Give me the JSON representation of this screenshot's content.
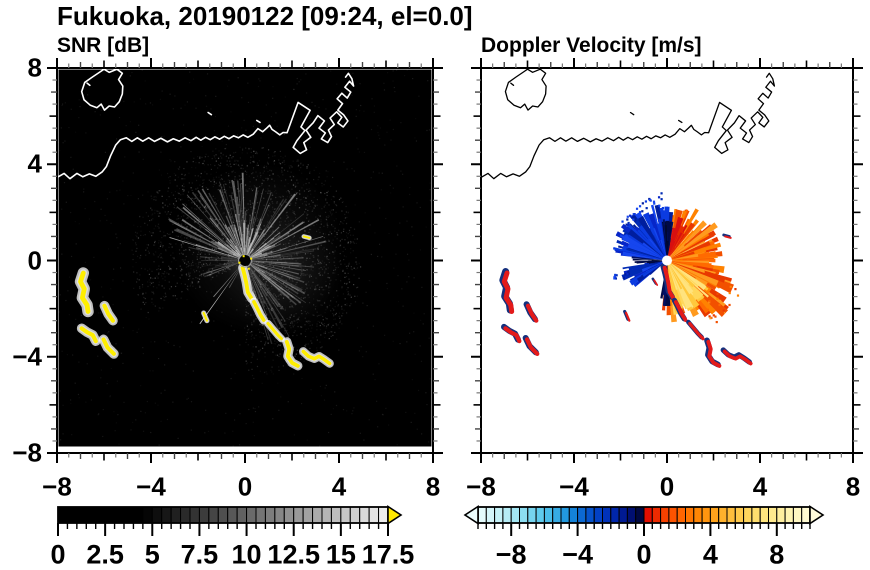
{
  "header": {
    "title": "Fukuoka, 20190122 [09:24, el=0.0]"
  },
  "chart_data": [
    {
      "id": "snr",
      "type": "heatmap",
      "title": "SNR [dB]",
      "xlim": [
        -8,
        8
      ],
      "ylim": [
        -8,
        8
      ],
      "xtick_values": [
        -8,
        -4,
        0,
        4,
        8
      ],
      "xtick_labels": [
        "−8",
        "−4",
        "0",
        "4",
        "8"
      ],
      "ytick_values": [
        8,
        4,
        0,
        -4,
        -8
      ],
      "ytick_labels": [
        "8",
        "4",
        "0",
        "−4",
        "−8"
      ],
      "minor_tick_step": 0.5,
      "grid": false,
      "background": "#000000",
      "coast_color": "#ffffff",
      "radar_center": [
        0,
        0
      ],
      "echo_color": "#ffee00",
      "halo_color": "#dcdcdc",
      "colorbar": {
        "range": [
          0,
          17.5
        ],
        "cell_step": 0.5,
        "tick_values": [
          0,
          2.5,
          5,
          7.5,
          10,
          12.5,
          15,
          17.5
        ],
        "tick_labels": [
          "0",
          "2.5",
          "5",
          "7.5",
          "10",
          "12.5",
          "15",
          "17.5"
        ],
        "ramp_black_until": 4.5,
        "ramp_white_at": 18,
        "left_arrow": false,
        "right_arrow": true,
        "over_arrow_color": "#ffe800"
      },
      "ray_fan": {
        "color": "#c8c8c8",
        "sectors": [
          {
            "a0": 12,
            "a1": 168,
            "n": 90,
            "l0": 0.8,
            "l1": 3.6,
            "alpha0": 0.18,
            "alpha1": 0.6
          },
          {
            "a0": 12,
            "a1": 168,
            "n": 60,
            "l0": 0.3,
            "l1": 1.5,
            "alpha0": 0.3,
            "alpha1": 0.75
          },
          {
            "a0": -78,
            "a1": 12,
            "n": 55,
            "l0": 0.6,
            "l1": 3.0,
            "alpha0": 0.1,
            "alpha1": 0.4
          },
          {
            "a0": -80,
            "a1": -50,
            "n": 12,
            "l0": 1.5,
            "l1": 3.8,
            "alpha0": 0.1,
            "alpha1": 0.3
          },
          {
            "a0": 168,
            "a1": 206,
            "n": 16,
            "l0": 0.5,
            "l1": 1.8,
            "alpha0": 0.08,
            "alpha1": 0.28
          }
        ],
        "streaks": [
          {
            "a": 163.0,
            "l": 3.2,
            "alpha": 0.7
          },
          {
            "a": 234.5,
            "l": 3.15,
            "alpha": 0.85
          },
          {
            "a": 229.0,
            "l": 1.9,
            "alpha": 0.55
          },
          {
            "a": 240.0,
            "l": 1.2,
            "alpha": 0.35
          }
        ]
      },
      "speckle": {
        "n_disc": 2600,
        "disc_r": 4.6,
        "n_uniform": 700
      }
    },
    {
      "id": "doppler",
      "type": "heatmap",
      "title": "Doppler Velocity [m/s]",
      "xlim": [
        -8,
        8
      ],
      "ylim": [
        -8,
        8
      ],
      "xtick_values": [
        -8,
        -4,
        0,
        4,
        8
      ],
      "xtick_labels": [
        "−8",
        "−4",
        "0",
        "4",
        "8"
      ],
      "ytick_values": [
        8,
        4,
        0,
        -4,
        -8
      ],
      "ytick_labels": [],
      "minor_tick_step": 0.5,
      "grid": false,
      "background": "#ffffff",
      "coast_color": "#000000",
      "radar_center": [
        0,
        0
      ],
      "colorbar": {
        "range": [
          -10,
          10
        ],
        "cell_step": 0.5,
        "tick_values": [
          -8,
          -4,
          0,
          4,
          8
        ],
        "tick_labels": [
          "−8",
          "−4",
          "0",
          "4",
          "8"
        ],
        "left_arrow": true,
        "right_arrow": true,
        "stops_negative": [
          [
            -10,
            "#eafcfc"
          ],
          [
            -8,
            "#aeeaf4"
          ],
          [
            -6,
            "#54c6ec"
          ],
          [
            -4.5,
            "#1890dc"
          ],
          [
            -3.5,
            "#085cce"
          ],
          [
            -2.5,
            "#0038c0"
          ],
          [
            -1.5,
            "#0020a2"
          ],
          [
            -0.7,
            "#000e6e"
          ],
          [
            0,
            "#000428"
          ]
        ],
        "stops_positive": [
          [
            0,
            "#dc0000"
          ],
          [
            1,
            "#f23800"
          ],
          [
            2,
            "#ff5c00"
          ],
          [
            3,
            "#ff7e00"
          ],
          [
            4,
            "#ff9c14"
          ],
          [
            5,
            "#ffb834"
          ],
          [
            6,
            "#ffd054"
          ],
          [
            7,
            "#ffe276"
          ],
          [
            8,
            "#ffec96"
          ],
          [
            9,
            "#fff6ba"
          ],
          [
            10,
            "#fffbda"
          ]
        ]
      },
      "fan": {
        "echo_core": "#e31a1a",
        "echo_fringe": "#15307d",
        "palettes": {
          "blue": [
            "#0726c8",
            "#0b3be0",
            "#001e9e",
            "#1646ee",
            "#002ab4"
          ],
          "navy": [
            "#000a46",
            "#001064",
            "#000830"
          ],
          "orange": [
            "#ff6a00",
            "#ff8200",
            "#f25000",
            "#ff9a1e",
            "#e83800"
          ],
          "yellow": [
            "#ffd75a",
            "#ffe37e",
            "#ffc83c"
          ],
          "red": [
            "#d81010",
            "#e82800"
          ]
        },
        "sectors": [
          {
            "palette": "orange",
            "a0": -95,
            "a1": 85,
            "n": 170,
            "l0": 0.5,
            "l1": 2.5
          },
          {
            "palette": "orange",
            "a0": -55,
            "a1": -15,
            "n": 40,
            "l0": 1.2,
            "l1": 3.2
          },
          {
            "palette": "yellow",
            "a0": -80,
            "a1": -35,
            "n": 50,
            "l0": 0.8,
            "l1": 2.2
          },
          {
            "palette": "red",
            "a0": 55,
            "a1": 85,
            "n": 18,
            "l0": 0.5,
            "l1": 1.8
          },
          {
            "palette": "navy",
            "a0": -100,
            "a1": -86,
            "n": 12,
            "l0": 0.6,
            "l1": 1.9
          },
          {
            "palette": "blue",
            "a0": 85,
            "a1": 175,
            "n": 120,
            "l0": 0.5,
            "l1": 2.3
          },
          {
            "palette": "blue",
            "a0": 188,
            "a1": 218,
            "n": 45,
            "l0": 0.4,
            "l1": 1.9
          },
          {
            "palette": "navy",
            "a0": 82,
            "a1": 95,
            "n": 16,
            "l0": 0.5,
            "l1": 1.7
          },
          {
            "palette": "navy",
            "a0": 172,
            "a1": 190,
            "n": 10,
            "l0": 0.4,
            "l1": 1.4
          }
        ],
        "dots": [
          {
            "palette": "blue",
            "a0": 95,
            "a1": 140,
            "n": 30,
            "r0": 2.2,
            "r1": 2.9
          },
          {
            "palette": "blue",
            "a0": 192,
            "a1": 200,
            "n": 14,
            "r0": 1.6,
            "r1": 2.5
          },
          {
            "palette": "orange",
            "a0": -55,
            "a1": -20,
            "n": 22,
            "r0": 2.4,
            "r1": 3.3
          }
        ]
      }
    }
  ],
  "map_features": {
    "coastline": [
      [
        -8.0,
        3.45
      ],
      [
        -7.7,
        3.62
      ],
      [
        -7.45,
        3.4
      ],
      [
        -7.15,
        3.62
      ],
      [
        -6.9,
        3.48
      ],
      [
        -6.62,
        3.6
      ],
      [
        -6.35,
        3.5
      ],
      [
        -6.08,
        3.68
      ],
      [
        -5.9,
        3.9
      ],
      [
        -5.72,
        4.35
      ],
      [
        -5.5,
        4.8
      ],
      [
        -5.3,
        5.02
      ],
      [
        -5.05,
        5.1
      ],
      [
        -4.82,
        4.95
      ],
      [
        -4.58,
        5.1
      ],
      [
        -4.35,
        4.96
      ],
      [
        -4.1,
        5.1
      ],
      [
        -3.85,
        4.95
      ],
      [
        -3.58,
        5.08
      ],
      [
        -3.3,
        4.93
      ],
      [
        -3.05,
        5.06
      ],
      [
        -2.8,
        4.96
      ],
      [
        -2.55,
        5.1
      ],
      [
        -2.3,
        4.98
      ],
      [
        -2.08,
        5.12
      ],
      [
        -1.88,
        5.0
      ],
      [
        -1.68,
        5.12
      ],
      [
        -1.48,
        5.02
      ],
      [
        -1.28,
        5.14
      ],
      [
        -1.08,
        5.04
      ],
      [
        -0.88,
        5.16
      ],
      [
        -0.68,
        5.06
      ],
      [
        -0.48,
        5.18
      ],
      [
        -0.28,
        5.1
      ],
      [
        -0.08,
        5.22
      ],
      [
        0.12,
        5.12
      ],
      [
        0.35,
        5.25
      ],
      [
        0.55,
        5.48
      ],
      [
        0.75,
        5.35
      ],
      [
        0.92,
        5.5
      ],
      [
        1.05,
        5.62
      ],
      [
        1.15,
        5.45
      ],
      [
        1.3,
        5.35
      ],
      [
        1.48,
        5.22
      ],
      [
        1.62,
        5.32
      ],
      [
        1.79,
        5.31
      ],
      [
        2.26,
        6.57
      ],
      [
        2.77,
        6.24
      ],
      [
        2.38,
        5.55
      ],
      [
        2.55,
        5.4
      ],
      [
        2.21,
        4.98
      ],
      [
        2.05,
        4.7
      ],
      [
        2.35,
        4.45
      ],
      [
        2.62,
        4.6
      ],
      [
        2.5,
        4.9
      ],
      [
        2.8,
        5.12
      ],
      [
        2.6,
        5.42
      ],
      [
        2.9,
        5.72
      ],
      [
        3.1,
        6.02
      ],
      [
        3.38,
        5.8
      ],
      [
        3.15,
        5.5
      ],
      [
        3.42,
        5.3
      ],
      [
        3.25,
        5.05
      ],
      [
        3.52,
        4.9
      ],
      [
        3.68,
        5.15
      ],
      [
        3.55,
        5.42
      ],
      [
        3.8,
        5.65
      ],
      [
        3.62,
        5.92
      ],
      [
        3.9,
        6.18
      ],
      [
        4.12,
        5.95
      ],
      [
        3.95,
        5.72
      ],
      [
        4.18,
        5.55
      ],
      [
        4.38,
        5.8
      ],
      [
        4.2,
        6.05
      ],
      [
        3.95,
        6.25
      ],
      [
        4.15,
        6.52
      ],
      [
        3.92,
        6.72
      ],
      [
        4.12,
        6.95
      ],
      [
        4.35,
        6.75
      ],
      [
        4.5,
        7.0
      ],
      [
        4.25,
        7.2
      ],
      [
        4.45,
        7.45
      ],
      [
        4.62,
        7.25
      ],
      [
        4.55,
        7.55
      ],
      [
        4.4,
        7.78
      ],
      [
        4.28,
        7.62
      ]
    ],
    "island": [
      [
        -6.15,
        7.85
      ],
      [
        -6.5,
        7.62
      ],
      [
        -6.82,
        7.4
      ],
      [
        -6.95,
        7.02
      ],
      [
        -6.85,
        6.68
      ],
      [
        -6.58,
        6.45
      ],
      [
        -6.3,
        6.35
      ],
      [
        -6.12,
        6.5
      ],
      [
        -5.98,
        6.25
      ],
      [
        -5.78,
        6.42
      ],
      [
        -5.55,
        6.38
      ],
      [
        -5.35,
        6.6
      ],
      [
        -5.22,
        6.92
      ],
      [
        -5.2,
        7.25
      ],
      [
        -5.38,
        7.52
      ],
      [
        -5.22,
        7.78
      ],
      [
        -5.45,
        7.95
      ],
      [
        -5.78,
        7.82
      ],
      [
        -6.0,
        7.95
      ],
      [
        -6.15,
        7.85
      ]
    ],
    "marks": [
      [
        [
          -6.72,
          7.37
        ],
        [
          -6.6,
          7.28
        ]
      ],
      [
        [
          -1.57,
          6.15
        ],
        [
          -1.43,
          6.06
        ]
      ],
      [
        [
          0.5,
          5.82
        ],
        [
          0.64,
          5.74
        ]
      ]
    ]
  },
  "echo_blobs": [
    {
      "pts": [
        [
          -6.88,
          -0.52
        ],
        [
          -7.0,
          -0.88
        ],
        [
          -6.84,
          -1.18
        ],
        [
          -6.92,
          -1.55
        ],
        [
          -6.72,
          -1.85
        ],
        [
          -6.68,
          -2.12
        ]
      ],
      "w": 0.2
    },
    {
      "pts": [
        [
          -5.98,
          -1.88
        ],
        [
          -5.82,
          -2.22
        ],
        [
          -5.62,
          -2.5
        ]
      ],
      "w": 0.17
    },
    {
      "pts": [
        [
          -6.95,
          -2.82
        ],
        [
          -6.72,
          -2.98
        ],
        [
          -6.48,
          -3.1
        ],
        [
          -6.35,
          -3.35
        ]
      ],
      "w": 0.17
    },
    {
      "pts": [
        [
          -6.02,
          -3.28
        ],
        [
          -5.85,
          -3.62
        ],
        [
          -5.58,
          -3.88
        ]
      ],
      "w": 0.17
    },
    {
      "pts": [
        [
          -0.1,
          -0.3
        ],
        [
          -0.02,
          -0.6
        ],
        [
          0.05,
          -0.9
        ],
        [
          0.12,
          -1.32
        ],
        [
          0.28,
          -1.58
        ]
      ],
      "w": 0.16
    },
    {
      "pts": [
        [
          0.38,
          -1.72
        ],
        [
          0.52,
          -1.98
        ],
        [
          0.65,
          -2.25
        ],
        [
          0.8,
          -2.48
        ]
      ],
      "w": 0.15
    },
    {
      "pts": [
        [
          0.98,
          -2.62
        ],
        [
          1.18,
          -2.85
        ],
        [
          1.38,
          -3.08
        ],
        [
          1.55,
          -3.25
        ]
      ],
      "w": 0.13
    },
    {
      "pts": [
        [
          1.78,
          -3.38
        ],
        [
          1.88,
          -3.68
        ],
        [
          1.82,
          -3.98
        ],
        [
          2.0,
          -4.25
        ],
        [
          2.25,
          -4.38
        ]
      ],
      "w": 0.16
    },
    {
      "pts": [
        [
          2.48,
          -3.78
        ],
        [
          2.7,
          -3.98
        ],
        [
          2.95,
          -4.08
        ],
        [
          3.15,
          -3.98
        ],
        [
          3.38,
          -4.12
        ],
        [
          3.6,
          -4.28
        ]
      ],
      "w": 0.15
    },
    {
      "pts": [
        [
          -1.76,
          -2.18
        ],
        [
          -1.62,
          -2.5
        ]
      ],
      "w": 0.09
    },
    {
      "pts": [
        [
          2.5,
          1.0
        ],
        [
          2.74,
          0.94
        ]
      ],
      "w": 0.08
    },
    {
      "pts": [
        [
          -0.55,
          -0.82
        ],
        [
          -0.42,
          -1.02
        ]
      ],
      "w": 0.07,
      "only": "doppler"
    }
  ]
}
